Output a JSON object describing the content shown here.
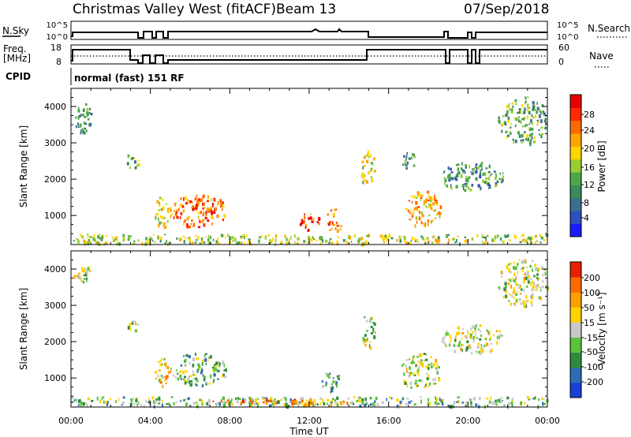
{
  "header": {
    "station": "Christmas Valley West (fitACF)",
    "beam": "Beam 13",
    "date": "07/Sep/2018"
  },
  "status_panels": {
    "nsky_label": "N.Sky",
    "nsky_ticks": [
      "10^5",
      "10^0"
    ],
    "nsearch_label": "N.Search",
    "nsearch_ticks": [
      "10^5",
      "10^0"
    ],
    "freq_label_1": "Freq.",
    "freq_label_2": "[MHz]",
    "freq_ticks": [
      "18",
      "8"
    ],
    "nave_label": "Nave",
    "nave_ticks": [
      "60",
      "0"
    ],
    "cpid_label": "CPID",
    "cpid_text": "normal (fast) 151 RF"
  },
  "chart_data": [
    {
      "type": "heatmap",
      "name": "power",
      "ylabel": "Slant Range [km]",
      "yticks": [
        1000,
        2000,
        3000,
        4000
      ],
      "ylim": [
        200,
        4500
      ],
      "xlim": [
        0,
        24
      ],
      "colorbar_label": "Power [dB]",
      "colorbar_ticks": [
        "28",
        "24",
        "20",
        "16",
        "12",
        "8",
        "4"
      ],
      "colors": [
        "#1a1aff",
        "#2e4fbf",
        "#3b6f8f",
        "#3a8a5a",
        "#4ea64a",
        "#9acd32",
        "#ffd700",
        "#ffa500",
        "#ff6a00",
        "#ff2a00",
        "#e60000"
      ],
      "echo_regions": [
        {
          "t": [
            0.1,
            1.1
          ],
          "r": [
            3300,
            4100
          ],
          "level": 3
        },
        {
          "t": [
            2.8,
            3.4
          ],
          "r": [
            2300,
            2800
          ],
          "level": 4
        },
        {
          "t": [
            4.2,
            5.0
          ],
          "r": [
            700,
            1600
          ],
          "level": 6
        },
        {
          "t": [
            5.0,
            7.8
          ],
          "r": [
            700,
            1600
          ],
          "level": 8
        },
        {
          "t": [
            11.5,
            12.5
          ],
          "r": [
            600,
            1100
          ],
          "level": 9
        },
        {
          "t": [
            12.8,
            13.6
          ],
          "r": [
            500,
            1200
          ],
          "level": 8
        },
        {
          "t": [
            14.6,
            15.3
          ],
          "r": [
            1800,
            2800
          ],
          "level": 5
        },
        {
          "t": [
            16.6,
            17.3
          ],
          "r": [
            2300,
            2800
          ],
          "level": 3
        },
        {
          "t": [
            16.8,
            18.6
          ],
          "r": [
            700,
            1700
          ],
          "level": 7
        },
        {
          "t": [
            18.6,
            21.8
          ],
          "r": [
            1700,
            2500
          ],
          "level": 3
        },
        {
          "t": [
            21.5,
            24.0
          ],
          "r": [
            3000,
            4300
          ],
          "level": 4
        },
        {
          "t": [
            0.0,
            24.0
          ],
          "r": [
            250,
            500
          ],
          "level": 5
        }
      ]
    },
    {
      "type": "heatmap",
      "name": "velocity",
      "ylabel": "Slant Range [km]",
      "yticks": [
        1000,
        2000,
        3000,
        4000
      ],
      "ylim": [
        200,
        4500
      ],
      "xlim": [
        0,
        24
      ],
      "xlabel": "Time UT",
      "xticks": [
        "00:00",
        "04:00",
        "08:00",
        "12:00",
        "16:00",
        "20:00",
        "00:00"
      ],
      "colorbar_label": "Velocity [m s⁻¹]",
      "colorbar_ticks": [
        "200",
        "100",
        "50",
        "15",
        "-15",
        "-50",
        "-100",
        "-200"
      ],
      "colors": [
        "#1a3fd6",
        "#2d6cb5",
        "#2f8a3c",
        "#58c23a",
        "#c8c8c8",
        "#ffd400",
        "#ffa000",
        "#ff6a00",
        "#e62000"
      ],
      "echo_regions": [
        {
          "t": [
            0.1,
            1.1
          ],
          "r": [
            3600,
            4100
          ],
          "level": 4
        },
        {
          "t": [
            2.8,
            3.4
          ],
          "r": [
            2300,
            2700
          ],
          "level": 4
        },
        {
          "t": [
            4.2,
            5.0
          ],
          "r": [
            800,
            1600
          ],
          "level": 5
        },
        {
          "t": [
            5.0,
            7.8
          ],
          "r": [
            800,
            1700
          ],
          "level": 3
        },
        {
          "t": [
            12.6,
            13.6
          ],
          "r": [
            600,
            1200
          ],
          "level": 2
        },
        {
          "t": [
            14.6,
            15.3
          ],
          "r": [
            1800,
            2800
          ],
          "level": 4
        },
        {
          "t": [
            16.6,
            18.6
          ],
          "r": [
            700,
            1700
          ],
          "level": 4
        },
        {
          "t": [
            18.6,
            21.8
          ],
          "r": [
            1700,
            2500
          ],
          "level": 4
        },
        {
          "t": [
            21.5,
            24.0
          ],
          "r": [
            3000,
            4300
          ],
          "level": 4
        },
        {
          "t": [
            0.0,
            24.0
          ],
          "r": [
            250,
            500
          ],
          "level": 3
        },
        {
          "t": [
            7.0,
            14.0
          ],
          "r": [
            250,
            450
          ],
          "level": 6
        }
      ]
    }
  ]
}
